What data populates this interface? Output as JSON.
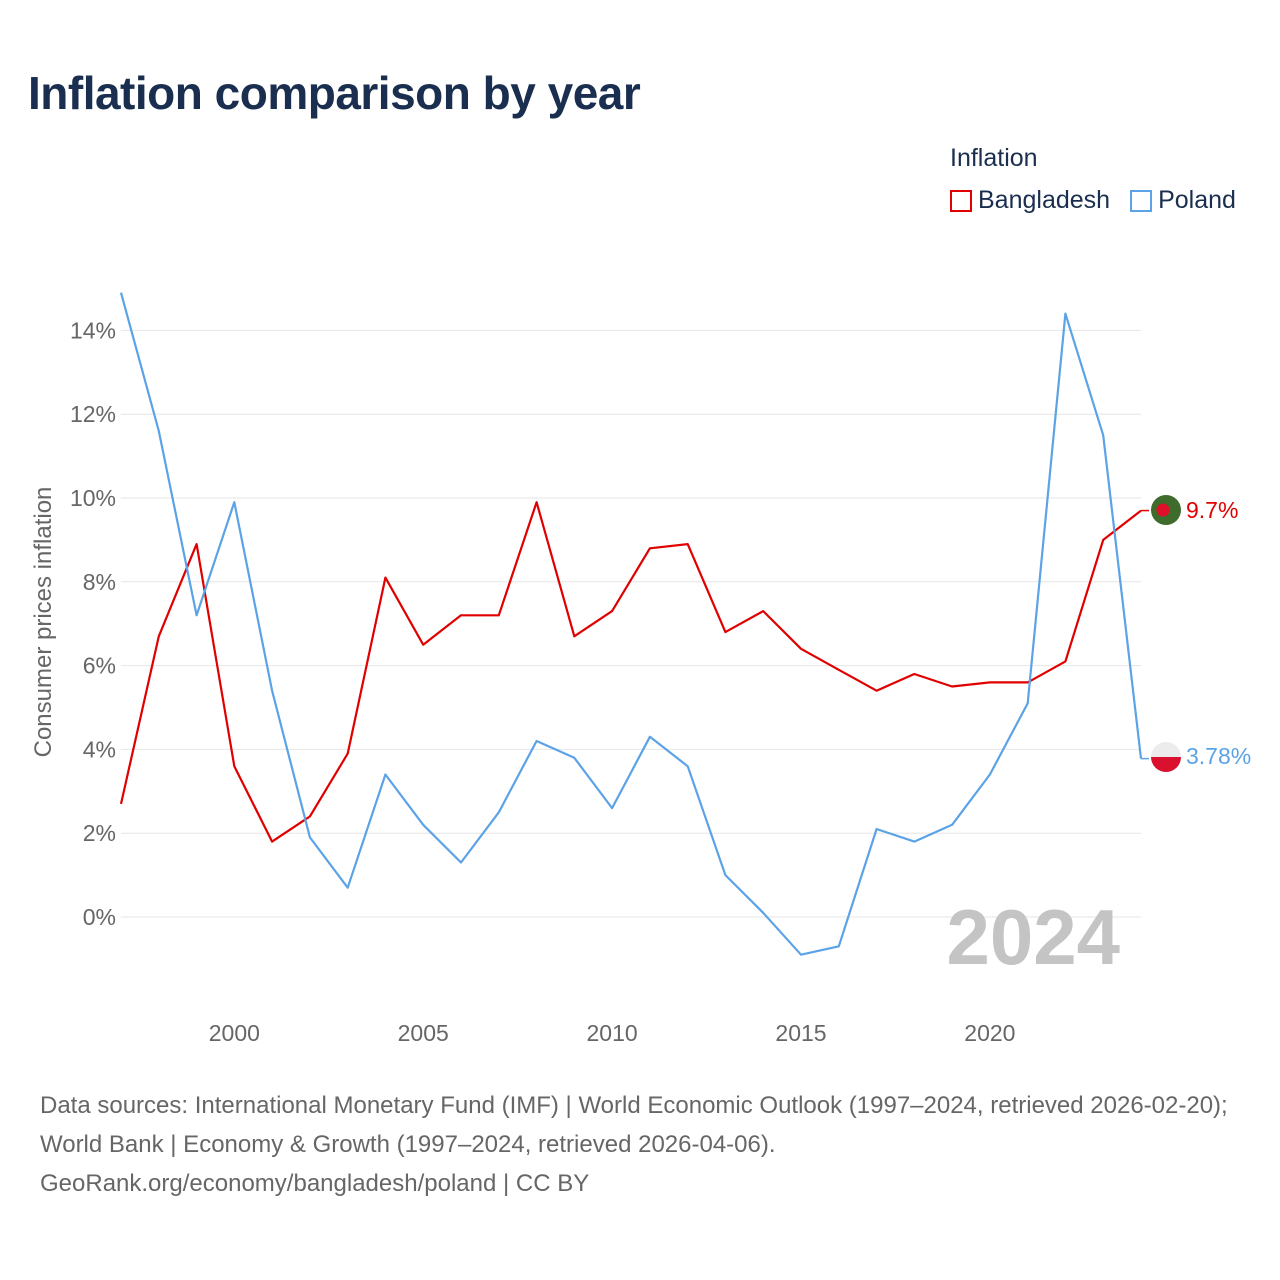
{
  "title": "Inflation comparison by year",
  "legend": {
    "heading": "Inflation",
    "items": [
      {
        "label": "Bangladesh",
        "color": "#e00000"
      },
      {
        "label": "Poland",
        "color": "#5ba3e6"
      }
    ]
  },
  "source": {
    "line1": "Data sources: International Monetary Fund (IMF) | World Economic Outlook (1997–2024, retrieved 2026-02-20); World Bank | Economy & Growth (1997–2024, retrieved 2026-04-06).",
    "line2": "GeoRank.org/economy/bangladesh/poland | CC BY"
  },
  "chart_data": {
    "type": "line",
    "title": "Inflation comparison by year",
    "xlabel": "",
    "ylabel": "Consumer prices inflation",
    "xlim": [
      1997,
      2024
    ],
    "ylim": [
      -2,
      15
    ],
    "x_ticks": [
      2000,
      2005,
      2010,
      2015,
      2020
    ],
    "x_tick_labels": [
      "2000",
      "2005",
      "2010",
      "2015",
      "2020"
    ],
    "y_ticks": [
      0,
      2,
      4,
      6,
      8,
      10,
      12,
      14
    ],
    "y_tick_labels": [
      "0%",
      "2%",
      "4%",
      "6%",
      "8%",
      "10%",
      "12%",
      "14%"
    ],
    "current_year_label": "2024",
    "x": [
      1997,
      1998,
      1999,
      2000,
      2001,
      2002,
      2003,
      2004,
      2005,
      2006,
      2007,
      2008,
      2009,
      2010,
      2011,
      2012,
      2013,
      2014,
      2015,
      2016,
      2017,
      2018,
      2019,
      2020,
      2021,
      2022,
      2023,
      2024
    ],
    "series": [
      {
        "name": "Bangladesh",
        "color": "#e00000",
        "end_label": "9.7%",
        "values": [
          2.7,
          6.7,
          8.9,
          3.6,
          1.8,
          2.4,
          3.9,
          8.1,
          6.5,
          7.2,
          7.2,
          9.9,
          6.7,
          7.3,
          8.8,
          8.9,
          6.8,
          7.3,
          6.4,
          5.9,
          5.4,
          5.8,
          5.5,
          5.6,
          5.6,
          6.1,
          9.0,
          9.7
        ]
      },
      {
        "name": "Poland",
        "color": "#5ba3e6",
        "end_label": "3.78%",
        "values": [
          14.9,
          11.6,
          7.2,
          9.9,
          5.4,
          1.9,
          0.7,
          3.4,
          2.2,
          1.3,
          2.5,
          4.2,
          3.8,
          2.6,
          4.3,
          3.6,
          1.0,
          0.1,
          -0.9,
          -0.7,
          2.1,
          1.8,
          2.2,
          3.4,
          5.1,
          14.4,
          11.5,
          3.78
        ]
      }
    ]
  }
}
